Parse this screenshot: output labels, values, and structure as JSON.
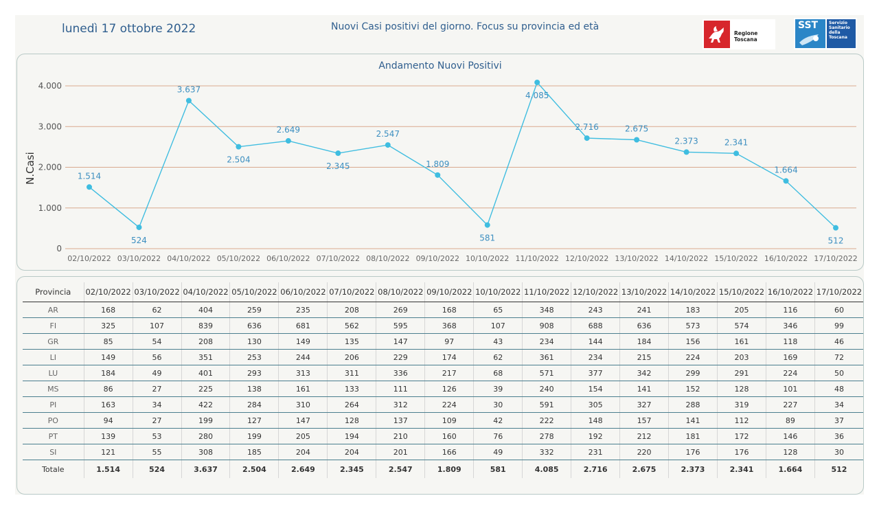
{
  "header": {
    "date": "lunedì 17 ottobre 2022",
    "subtitle": "Nuovi Casi positivi del giorno. Focus su provincia ed età",
    "logo_regione": "Regione Toscana",
    "logo_sst_mark": "SST",
    "logo_sst_text": "Servizio Sanitario della Toscana"
  },
  "colors": {
    "line": "#3fbde0",
    "label": "#3d8fc0",
    "grid": "#d9a98e",
    "accent_text": "#2f5e8e",
    "regione_red": "#d7262c",
    "sst_blue": "#1f5aa5"
  },
  "chart_data": {
    "type": "line",
    "title": "Andamento Nuovi Positivi",
    "ylabel": "N.Casi",
    "xlabel": "",
    "ylim": [
      0,
      4000
    ],
    "yticks": [
      0,
      1000,
      2000,
      3000,
      4000
    ],
    "ytick_labels": [
      "0",
      "1.000",
      "2.000",
      "3.000",
      "4.000"
    ],
    "grid": true,
    "categories": [
      "02/10/2022",
      "03/10/2022",
      "04/10/2022",
      "05/10/2022",
      "06/10/2022",
      "07/10/2022",
      "08/10/2022",
      "09/10/2022",
      "10/10/2022",
      "11/10/2022",
      "12/10/2022",
      "13/10/2022",
      "14/10/2022",
      "15/10/2022",
      "16/10/2022",
      "17/10/2022"
    ],
    "values": [
      1514,
      524,
      3637,
      2504,
      2649,
      2345,
      2547,
      1809,
      581,
      4085,
      2716,
      2675,
      2373,
      2341,
      1664,
      512
    ],
    "value_labels": [
      "1.514",
      "524",
      "3.637",
      "2.504",
      "2.649",
      "2.345",
      "2.547",
      "1.809",
      "581",
      "4.085",
      "2.716",
      "2.675",
      "2.373",
      "2.341",
      "1.664",
      "512"
    ],
    "label_side": [
      "above",
      "below",
      "above",
      "below",
      "above",
      "below",
      "above",
      "above",
      "below",
      "below",
      "above",
      "above",
      "above",
      "above",
      "above",
      "below"
    ]
  },
  "table": {
    "header_label": "Provincia",
    "dates": [
      "02/10/2022",
      "03/10/2022",
      "04/10/2022",
      "05/10/2022",
      "06/10/2022",
      "07/10/2022",
      "08/10/2022",
      "09/10/2022",
      "10/10/2022",
      "11/10/2022",
      "12/10/2022",
      "13/10/2022",
      "14/10/2022",
      "15/10/2022",
      "16/10/2022",
      "17/10/2022"
    ],
    "rows": [
      {
        "prov": "AR",
        "vals": [
          "168",
          "62",
          "404",
          "259",
          "235",
          "208",
          "269",
          "168",
          "65",
          "348",
          "243",
          "241",
          "183",
          "205",
          "116",
          "60"
        ]
      },
      {
        "prov": "FI",
        "vals": [
          "325",
          "107",
          "839",
          "636",
          "681",
          "562",
          "595",
          "368",
          "107",
          "908",
          "688",
          "636",
          "573",
          "574",
          "346",
          "99"
        ]
      },
      {
        "prov": "GR",
        "vals": [
          "85",
          "54",
          "208",
          "130",
          "149",
          "135",
          "147",
          "97",
          "43",
          "234",
          "144",
          "184",
          "156",
          "161",
          "118",
          "46"
        ]
      },
      {
        "prov": "LI",
        "vals": [
          "149",
          "56",
          "351",
          "253",
          "244",
          "206",
          "229",
          "174",
          "62",
          "361",
          "234",
          "215",
          "224",
          "203",
          "169",
          "72"
        ]
      },
      {
        "prov": "LU",
        "vals": [
          "184",
          "49",
          "401",
          "293",
          "313",
          "311",
          "336",
          "217",
          "68",
          "571",
          "377",
          "342",
          "299",
          "291",
          "224",
          "50"
        ]
      },
      {
        "prov": "MS",
        "vals": [
          "86",
          "27",
          "225",
          "138",
          "161",
          "133",
          "111",
          "126",
          "39",
          "240",
          "154",
          "141",
          "152",
          "128",
          "101",
          "48"
        ]
      },
      {
        "prov": "PI",
        "vals": [
          "163",
          "34",
          "422",
          "284",
          "310",
          "264",
          "312",
          "224",
          "30",
          "591",
          "305",
          "327",
          "288",
          "319",
          "227",
          "34"
        ]
      },
      {
        "prov": "PO",
        "vals": [
          "94",
          "27",
          "199",
          "127",
          "147",
          "128",
          "137",
          "109",
          "42",
          "222",
          "148",
          "157",
          "141",
          "112",
          "89",
          "37"
        ]
      },
      {
        "prov": "PT",
        "vals": [
          "139",
          "53",
          "280",
          "199",
          "205",
          "194",
          "210",
          "160",
          "76",
          "278",
          "192",
          "212",
          "181",
          "172",
          "146",
          "36"
        ]
      },
      {
        "prov": "SI",
        "vals": [
          "121",
          "55",
          "308",
          "185",
          "204",
          "204",
          "201",
          "166",
          "49",
          "332",
          "231",
          "220",
          "176",
          "176",
          "128",
          "30"
        ]
      }
    ],
    "total": {
      "prov": "Totale",
      "vals": [
        "1.514",
        "524",
        "3.637",
        "2.504",
        "2.649",
        "2.345",
        "2.547",
        "1.809",
        "581",
        "4.085",
        "2.716",
        "2.675",
        "2.373",
        "2.341",
        "1.664",
        "512"
      ]
    }
  }
}
